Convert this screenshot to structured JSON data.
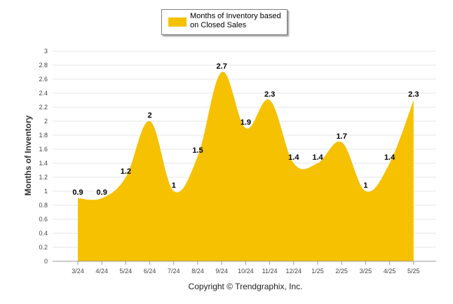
{
  "chart_data": {
    "type": "area",
    "categories": [
      "3/24",
      "4/24",
      "5/24",
      "6/24",
      "7/24",
      "8/24",
      "9/24",
      "10/24",
      "11/24",
      "12/24",
      "1/25",
      "2/25",
      "3/25",
      "4/25",
      "5/25"
    ],
    "series": [
      {
        "name": "Months of Inventory based on Closed Sales",
        "values": [
          0.9,
          0.9,
          1.2,
          2,
          1,
          1.5,
          2.7,
          1.9,
          2.3,
          1.4,
          1.4,
          1.7,
          1,
          1.4,
          2.3
        ],
        "labels": [
          "0.9",
          "0.9",
          "1.2",
          "2",
          "1",
          "1.5",
          "2.7",
          "1.9",
          "2.3",
          "1.4",
          "1.4",
          "1.7",
          "1",
          "1.4",
          "2.3"
        ]
      }
    ],
    "ylabel": "Months of Inventory",
    "ylim": [
      0,
      3
    ],
    "yticks": [
      "0",
      "0.2",
      "0.4",
      "0.6",
      "0.8",
      "1",
      "1.2",
      "1.4",
      "1.6",
      "1.8",
      "2",
      "2.2",
      "2.4",
      "2.6",
      "2.8",
      "3"
    ],
    "grid": true,
    "legend_position": "top-center",
    "colors": {
      "fill": "#F5C100",
      "grid": "#e6e6e6",
      "axis": "#999999"
    }
  },
  "footer": {
    "copyright": "Copyright © Trendgraphix, Inc."
  }
}
